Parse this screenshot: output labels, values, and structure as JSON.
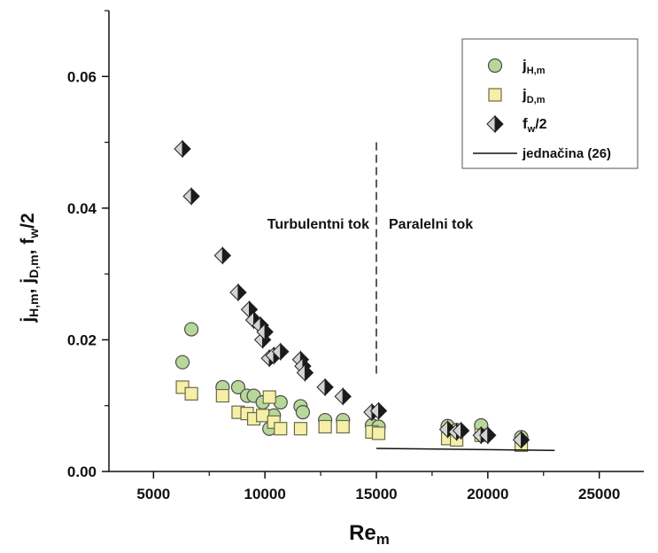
{
  "chart_data": {
    "type": "scatter",
    "xlim": [
      3000,
      27000
    ],
    "ylim": [
      0,
      0.07
    ],
    "x_ticks": [
      "5000",
      "10000",
      "15000",
      "20000",
      "25000"
    ],
    "y_ticks": [
      "0.00",
      "0.02",
      "0.04",
      "0.06"
    ],
    "xlabel": {
      "base": "Re",
      "sub": "m"
    },
    "ylabel": "j_H,m, j_D,m, f_w/2",
    "annotations": {
      "left": "Turbulentni tok",
      "right": "Paralelni tok",
      "divider_x": 15000,
      "divider_ytop": 0.05,
      "divider_ybottom": 0.0145
    },
    "legend": {
      "position": "top-right",
      "entries": [
        {
          "key": "jH",
          "base": "j",
          "sub": "H,m"
        },
        {
          "key": "jD",
          "base": "j",
          "sub": "D,m"
        },
        {
          "key": "fw",
          "base": "f",
          "sub": "w",
          "suffix": "/2"
        },
        {
          "key": "eq",
          "text": "jednačina (26)"
        }
      ]
    },
    "colors": {
      "jH": "#b8d89a",
      "jD": "#f5efa8",
      "fw_light": "#d4d4d4",
      "fw_dark": "#1a1a1a",
      "line": "#111111"
    },
    "series": [
      {
        "key": "jH",
        "marker": "circle",
        "points": [
          [
            6300,
            0.0166
          ],
          [
            6700,
            0.0216
          ],
          [
            8100,
            0.0128
          ],
          [
            8800,
            0.0128
          ],
          [
            9200,
            0.0115
          ],
          [
            9500,
            0.0115
          ],
          [
            9900,
            0.0105
          ],
          [
            10200,
            0.0065
          ],
          [
            10400,
            0.0085
          ],
          [
            10700,
            0.0105
          ],
          [
            11600,
            0.0099
          ],
          [
            11700,
            0.009
          ],
          [
            12700,
            0.0078
          ],
          [
            13500,
            0.0078
          ],
          [
            14800,
            0.007
          ],
          [
            15100,
            0.0068
          ],
          [
            18200,
            0.0069
          ],
          [
            18600,
            0.0063
          ],
          [
            19700,
            0.007
          ],
          [
            21500,
            0.0052
          ]
        ]
      },
      {
        "key": "jD",
        "marker": "square",
        "points": [
          [
            6300,
            0.0128
          ],
          [
            6700,
            0.0118
          ],
          [
            8100,
            0.0115
          ],
          [
            8800,
            0.009
          ],
          [
            9200,
            0.0088
          ],
          [
            9500,
            0.008
          ],
          [
            9900,
            0.0085
          ],
          [
            10200,
            0.0113
          ],
          [
            10400,
            0.0075
          ],
          [
            10700,
            0.0065
          ],
          [
            11600,
            0.0065
          ],
          [
            12700,
            0.0068
          ],
          [
            13500,
            0.0068
          ],
          [
            14800,
            0.006
          ],
          [
            15100,
            0.0058
          ],
          [
            18200,
            0.005
          ],
          [
            18600,
            0.0048
          ],
          [
            19700,
            0.0055
          ],
          [
            21500,
            0.004
          ]
        ]
      },
      {
        "key": "fw",
        "marker": "diamond",
        "points": [
          [
            6300,
            0.049
          ],
          [
            6700,
            0.0418
          ],
          [
            8100,
            0.0328
          ],
          [
            8800,
            0.0272
          ],
          [
            9300,
            0.0246
          ],
          [
            9500,
            0.023
          ],
          [
            9800,
            0.0222
          ],
          [
            9900,
            0.02
          ],
          [
            10000,
            0.0212
          ],
          [
            10200,
            0.0172
          ],
          [
            10400,
            0.0176
          ],
          [
            10700,
            0.0182
          ],
          [
            11600,
            0.017
          ],
          [
            11700,
            0.016
          ],
          [
            11800,
            0.015
          ],
          [
            12700,
            0.0128
          ],
          [
            13500,
            0.0114
          ],
          [
            14800,
            0.009
          ],
          [
            15100,
            0.0092
          ],
          [
            18200,
            0.0064
          ],
          [
            18600,
            0.006
          ],
          [
            18800,
            0.0062
          ],
          [
            19700,
            0.0055
          ],
          [
            20000,
            0.0055
          ],
          [
            21500,
            0.0048
          ]
        ]
      },
      {
        "key": "eq",
        "marker": "line",
        "points": [
          [
            15000,
            0.0035
          ],
          [
            23000,
            0.0032
          ]
        ]
      }
    ]
  }
}
